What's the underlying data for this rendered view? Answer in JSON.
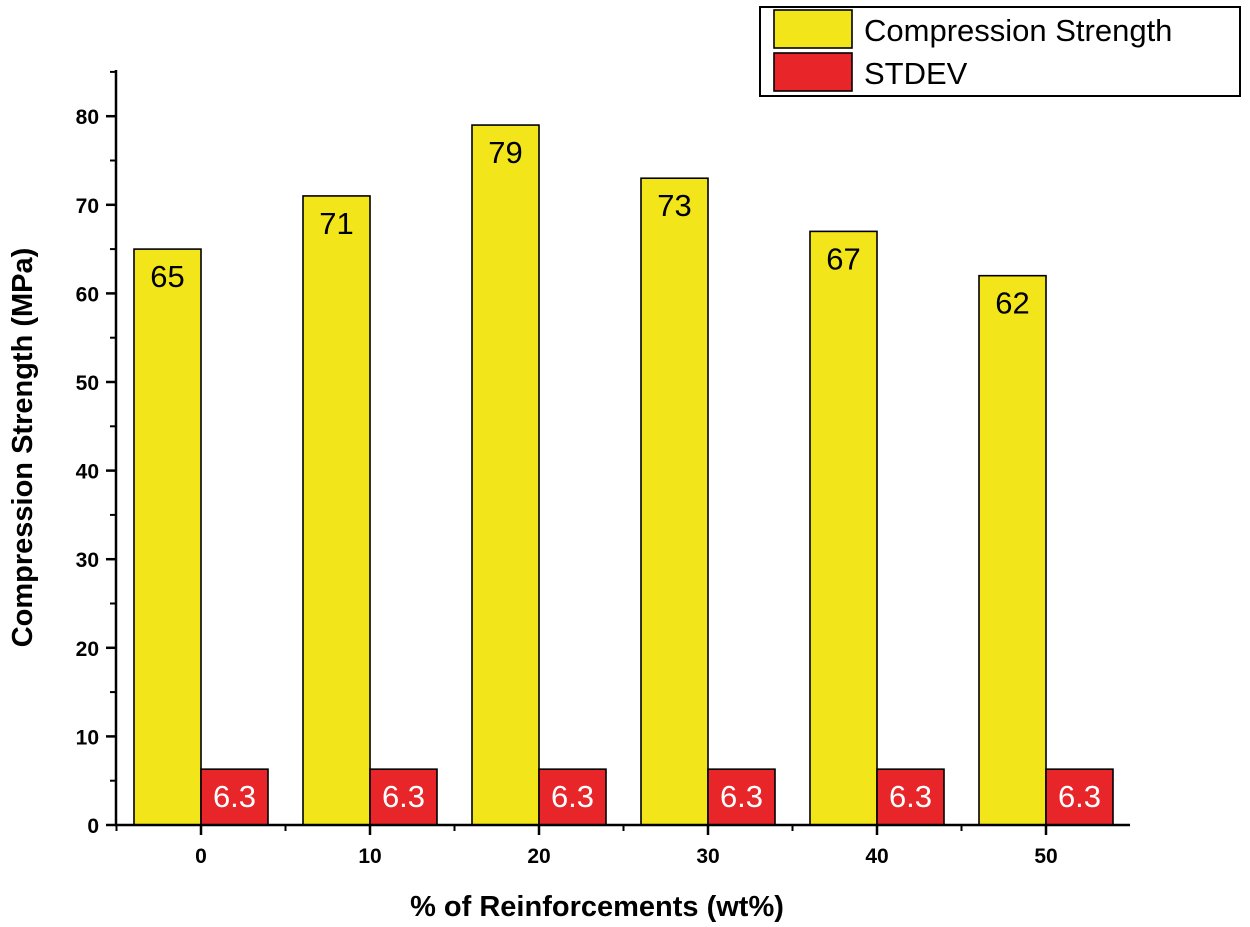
{
  "chart_data": {
    "type": "bar",
    "categories": [
      "0",
      "10",
      "20",
      "30",
      "40",
      "50"
    ],
    "series": [
      {
        "name": "Compression Strength",
        "values": [
          65,
          71,
          79,
          73,
          67,
          62
        ],
        "color": "#f2e61a",
        "label_color": "#000000"
      },
      {
        "name": "STDEV",
        "values": [
          6.3,
          6.3,
          6.3,
          6.3,
          6.3,
          6.3
        ],
        "color": "#e8262a",
        "label_color": "#ffffff"
      }
    ],
    "data_labels": [
      [
        "65",
        "71",
        "79",
        "73",
        "67",
        "62"
      ],
      [
        "6.3",
        "6.3",
        "6.3",
        "6.3",
        "6.3",
        "6.3"
      ]
    ],
    "xlabel": "% of Reinforcements (wt%)",
    "ylabel": "Compression Strength (MPa)",
    "ylim": [
      0,
      85
    ],
    "yticks": [
      0,
      10,
      20,
      30,
      40,
      50,
      60,
      70,
      80
    ],
    "grid": false,
    "legend_position": "top-right"
  }
}
